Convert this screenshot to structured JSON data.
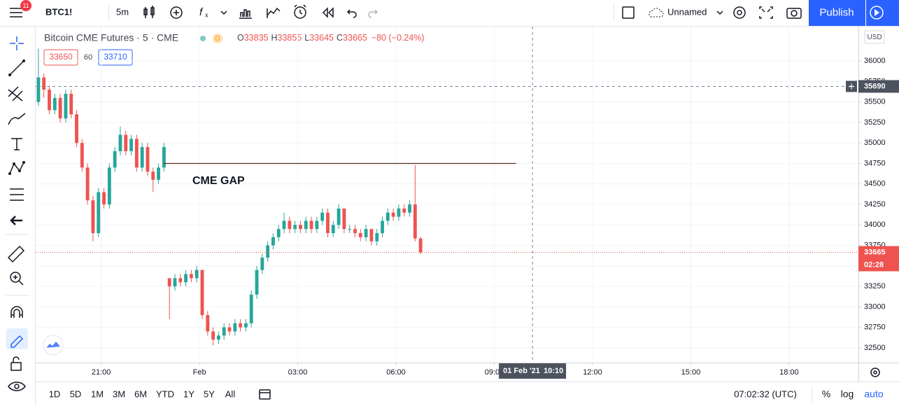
{
  "toolbar": {
    "symbol": "BTC1!",
    "interval": "5m",
    "layout_name": "Unnamed",
    "publish": "Publish",
    "notifications": "11"
  },
  "legend": {
    "title": "Bitcoin CME Futures · 5 · CME",
    "status": "D",
    "ohlc": [
      {
        "label": "O",
        "value": 33835
      },
      {
        "label": "H",
        "value": 33855
      },
      {
        "label": "L",
        "value": 33645
      },
      {
        "label": "C",
        "value": 33665
      }
    ],
    "change": "−80 (−0.24%)"
  },
  "quote": {
    "bid": 33650,
    "spread": 60,
    "ask": 33710
  },
  "chart_data": {
    "type": "candlestick",
    "x": [
      -295,
      -285,
      -275,
      -265,
      -255,
      -245,
      -235,
      -225,
      -215,
      -205,
      -195,
      -185,
      -175,
      -165,
      -155,
      -145,
      -135,
      -125,
      -115,
      -105,
      -95,
      -85,
      -75,
      -65,
      -55,
      -45,
      -35,
      -25,
      -15,
      -5,
      5,
      15,
      25,
      35,
      45,
      55,
      65,
      75,
      85,
      95,
      105,
      115,
      125,
      135,
      145,
      155,
      165,
      175,
      185,
      195,
      205,
      215,
      225,
      235,
      245,
      255,
      265,
      275,
      285,
      295,
      305,
      315,
      325,
      335,
      345,
      355,
      365,
      375,
      385,
      395,
      405
    ],
    "open": [
      35500,
      35800,
      35650,
      35400,
      35550,
      35300,
      35600,
      35350,
      35000,
      34700,
      34300,
      33900,
      34400,
      34250,
      34700,
      34900,
      35100,
      34900,
      35050,
      34700,
      34950,
      34650,
      34550,
      34700,
      33350,
      33250,
      33350,
      33300,
      33400,
      33350,
      33450,
      32900,
      32700,
      32600,
      32650,
      32750,
      32700,
      32800,
      32750,
      32800,
      33150,
      33450,
      33600,
      33750,
      33850,
      33950,
      34050,
      33950,
      34000,
      33950,
      34050,
      33950,
      34050,
      34150,
      33900,
      34000,
      34200,
      33950,
      33950,
      33900,
      33850,
      33950,
      33800,
      33900,
      34050,
      34150,
      34100,
      34200,
      34150,
      34250,
      33835
    ],
    "high": [
      36150,
      35850,
      35700,
      35600,
      35600,
      35650,
      35650,
      35400,
      35050,
      34750,
      34350,
      34450,
      34450,
      34750,
      34950,
      35200,
      35150,
      35100,
      35100,
      35000,
      35000,
      34700,
      34750,
      35000,
      33350,
      33400,
      33400,
      33450,
      33450,
      33500,
      33450,
      32950,
      32750,
      32700,
      32800,
      32800,
      32850,
      32850,
      32850,
      33200,
      33500,
      33650,
      33800,
      33900,
      34000,
      34150,
      34100,
      34050,
      34050,
      34100,
      34100,
      34100,
      34200,
      34200,
      34050,
      34250,
      34200,
      34000,
      34000,
      33950,
      34000,
      33950,
      33950,
      34100,
      34200,
      34200,
      34250,
      34250,
      34300,
      34730,
      33855
    ],
    "low": [
      35450,
      35550,
      35350,
      35350,
      35250,
      35250,
      35300,
      34950,
      34650,
      34250,
      33800,
      33850,
      34200,
      34200,
      34650,
      34850,
      34850,
      34850,
      34650,
      34650,
      34600,
      34400,
      34500,
      34650,
      32850,
      33200,
      33250,
      33250,
      33300,
      33300,
      32850,
      32650,
      32530,
      32550,
      32600,
      32650,
      32650,
      32700,
      32700,
      32750,
      33100,
      33400,
      33550,
      33700,
      33800,
      33900,
      33900,
      33900,
      33900,
      33900,
      33900,
      33900,
      34000,
      33850,
      33850,
      33950,
      33900,
      33900,
      33850,
      33800,
      33800,
      33750,
      33750,
      33850,
      34000,
      34050,
      34050,
      34100,
      34100,
      33800,
      33645
    ],
    "close": [
      35800,
      35650,
      35400,
      35550,
      35300,
      35600,
      35350,
      35000,
      34700,
      34300,
      33900,
      34400,
      34250,
      34700,
      34900,
      35100,
      34900,
      35050,
      34700,
      34950,
      34650,
      34550,
      34700,
      34950,
      33250,
      33350,
      33300,
      33400,
      33350,
      33450,
      32900,
      32700,
      32600,
      32650,
      32750,
      32700,
      32800,
      32750,
      32800,
      33150,
      33450,
      33600,
      33750,
      33850,
      33950,
      34050,
      33950,
      34000,
      33950,
      34050,
      33950,
      34050,
      34150,
      33900,
      34000,
      34200,
      33950,
      33950,
      33900,
      33850,
      33950,
      33800,
      33900,
      34050,
      34150,
      34100,
      34200,
      34150,
      34250,
      33835,
      33665
    ],
    "up_color": "#26a69a",
    "down_color": "#ef5350",
    "xlim": [
      -300,
      1207
    ],
    "xticks": [
      {
        "value": -180,
        "label": "21:00"
      },
      {
        "value": 0,
        "label": "Feb"
      },
      {
        "value": 180,
        "label": "03:00"
      },
      {
        "value": 360,
        "label": "06:00"
      },
      {
        "value": 540,
        "label": "09:00"
      },
      {
        "value": 720,
        "label": "12:00"
      },
      {
        "value": 900,
        "label": "15:00"
      },
      {
        "value": 1080,
        "label": "18:00"
      }
    ],
    "ylim": [
      32320,
      36420
    ],
    "yticks": [
      32500,
      32750,
      33000,
      33250,
      33500,
      33750,
      34000,
      34250,
      34500,
      34750,
      35000,
      35250,
      35500,
      35750,
      36000
    ],
    "grid": true,
    "currency": "USD",
    "annotation": "CME GAP",
    "gap_line": {
      "price": 34750,
      "x": [
        -65,
        580
      ]
    },
    "last_price_countdown": "02:28",
    "crosshair": {
      "x": 610,
      "y": 35690,
      "date_label": "01 Feb '21",
      "time_label": "10:10"
    }
  },
  "bottom_bar": {
    "ranges": [
      "1D",
      "5D",
      "1M",
      "3M",
      "6M",
      "YTD",
      "1Y",
      "5Y",
      "All"
    ],
    "clock": "07:02:32 (UTC)",
    "percent": "%",
    "log": "log",
    "auto": "auto"
  }
}
